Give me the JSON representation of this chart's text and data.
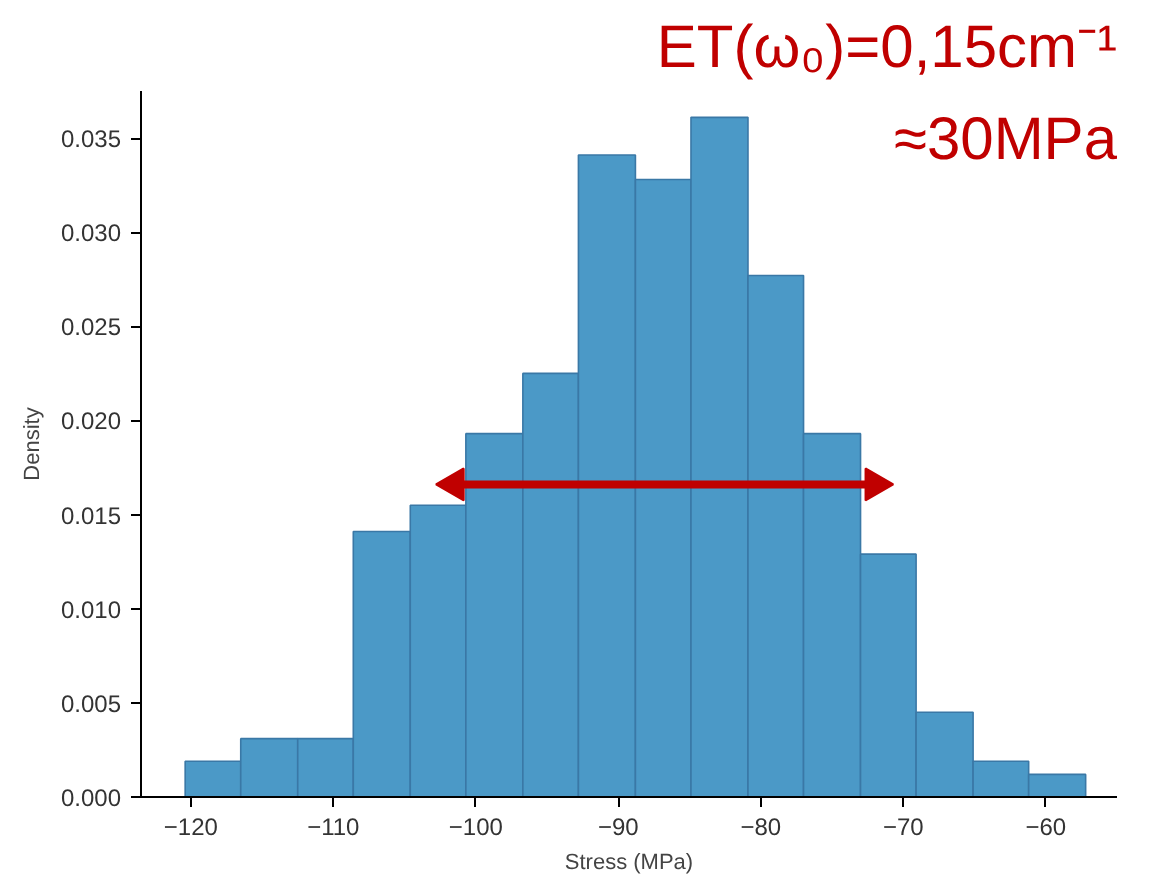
{
  "chart_data": {
    "type": "histogram",
    "xlabel": "Stress (MPa)",
    "ylabel": "Density",
    "bins": [
      -120.4,
      -116.5,
      -112.5,
      -108.6,
      -104.6,
      -100.7,
      -96.7,
      -92.8,
      -88.8,
      -84.9,
      -80.9,
      -77.0,
      -73.0,
      -69.1,
      -65.1,
      -61.2,
      -57.2
    ],
    "values": [
      0.0019,
      0.0031,
      0.0031,
      0.0141,
      0.0155,
      0.0193,
      0.0225,
      0.0341,
      0.0328,
      0.0361,
      0.0277,
      0.0193,
      0.0129,
      0.0045,
      0.0019,
      0.0012
    ],
    "color": "#4b99c7",
    "xlim": [
      -123.5,
      -55
    ],
    "xticks": [
      -120,
      -110,
      -100,
      -90,
      -80,
      -70,
      -60
    ],
    "ylim": [
      0,
      0.0375
    ],
    "yticks": [
      {
        "value": 0,
        "label": "0.000"
      },
      {
        "value": 0.005,
        "label": "0.005"
      },
      {
        "value": 0.01,
        "label": "0.010"
      },
      {
        "value": 0.015,
        "label": "0.015"
      },
      {
        "value": 0.02,
        "label": "0.020"
      },
      {
        "value": 0.025,
        "label": "0.025"
      },
      {
        "value": 0.03,
        "label": "0.030"
      },
      {
        "value": 0.035,
        "label": "0.035"
      }
    ],
    "grid": false,
    "title": "ET(ω₀)=0,15cm⁻¹",
    "annotations": [
      "≈30MPa"
    ],
    "series": [
      {
        "type": "line",
        "x": [
          -101.5,
          -72
        ],
        "values": [
          0.0166,
          0.0166
        ],
        "color": "#c00000",
        "marker": "triangle"
      }
    ]
  }
}
